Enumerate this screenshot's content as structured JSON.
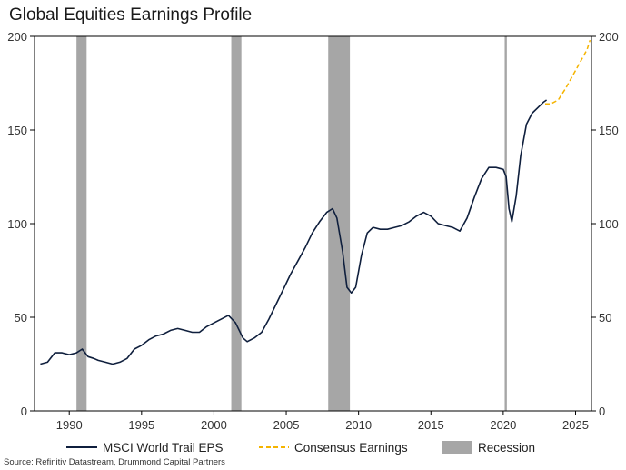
{
  "title": "Global Equities Earnings Profile",
  "source": "Source: Refinitiv Datastream, Drummond Capital Partners",
  "colors": {
    "eps": "#0f1f3d",
    "consensus": "#f5b400",
    "recession": "#a6a6a6",
    "axis": "#000000"
  },
  "chart_data": {
    "type": "line",
    "title": "Global Equities Earnings Profile",
    "xlim": [
      1987.6,
      2026.1
    ],
    "ylim": [
      0,
      200
    ],
    "x_ticks": [
      1990,
      1995,
      2000,
      2005,
      2010,
      2015,
      2020,
      2025
    ],
    "y_ticks": [
      0,
      50,
      100,
      150,
      200
    ],
    "grid": false,
    "secondary_y_axis": true,
    "legend_position": "bottom",
    "legend": [
      "MSCI World Trail EPS",
      "Consensus Earnings",
      "Recession"
    ],
    "recessions": [
      [
        1990.5,
        1991.2
      ],
      [
        2001.2,
        2001.9
      ],
      [
        2007.9,
        2009.4
      ],
      [
        2020.1,
        2020.25
      ]
    ],
    "series": [
      {
        "name": "MSCI World Trail EPS",
        "style": "solid",
        "x": [
          1988.0,
          1988.5,
          1989.0,
          1989.5,
          1990.0,
          1990.5,
          1990.9,
          1991.3,
          1991.7,
          1992.0,
          1992.5,
          1993.0,
          1993.5,
          1994.0,
          1994.5,
          1995.0,
          1995.5,
          1996.0,
          1996.5,
          1997.0,
          1997.5,
          1998.0,
          1998.5,
          1999.0,
          1999.5,
          2000.0,
          2000.5,
          2001.0,
          2001.5,
          2002.0,
          2002.3,
          2002.8,
          2003.3,
          2003.8,
          2004.3,
          2004.8,
          2005.3,
          2005.8,
          2006.3,
          2006.8,
          2007.3,
          2007.8,
          2008.2,
          2008.5,
          2008.9,
          2009.2,
          2009.5,
          2009.8,
          2010.2,
          2010.6,
          2011.0,
          2011.5,
          2012.0,
          2012.5,
          2013.0,
          2013.5,
          2014.0,
          2014.5,
          2015.0,
          2015.5,
          2016.0,
          2016.5,
          2017.0,
          2017.5,
          2018.0,
          2018.5,
          2019.0,
          2019.5,
          2020.0,
          2020.2,
          2020.4,
          2020.6,
          2020.9,
          2021.2,
          2021.6,
          2022.0,
          2022.4,
          2022.8,
          2023.0
        ],
        "y": [
          25,
          26,
          31,
          31,
          30,
          31,
          33,
          29,
          28,
          27,
          26,
          25,
          26,
          28,
          33,
          35,
          38,
          40,
          41,
          43,
          44,
          43,
          42,
          42,
          45,
          47,
          49,
          51,
          47,
          39,
          37,
          39,
          42,
          49,
          57,
          65,
          73,
          80,
          87,
          95,
          101,
          106,
          108,
          103,
          85,
          66,
          63,
          66,
          83,
          95,
          98,
          97,
          97,
          98,
          99,
          101,
          104,
          106,
          104,
          100,
          99,
          98,
          96,
          103,
          114,
          124,
          130,
          130,
          129,
          125,
          108,
          101,
          115,
          136,
          153,
          159,
          162,
          165,
          166
        ]
      },
      {
        "name": "Consensus Earnings",
        "style": "dashed",
        "x": [
          2022.9,
          2023.3,
          2023.8,
          2024.3,
          2024.8,
          2025.3,
          2025.8,
          2026.0
        ],
        "y": [
          164,
          164,
          166,
          172,
          179,
          186,
          193,
          198
        ]
      }
    ]
  }
}
